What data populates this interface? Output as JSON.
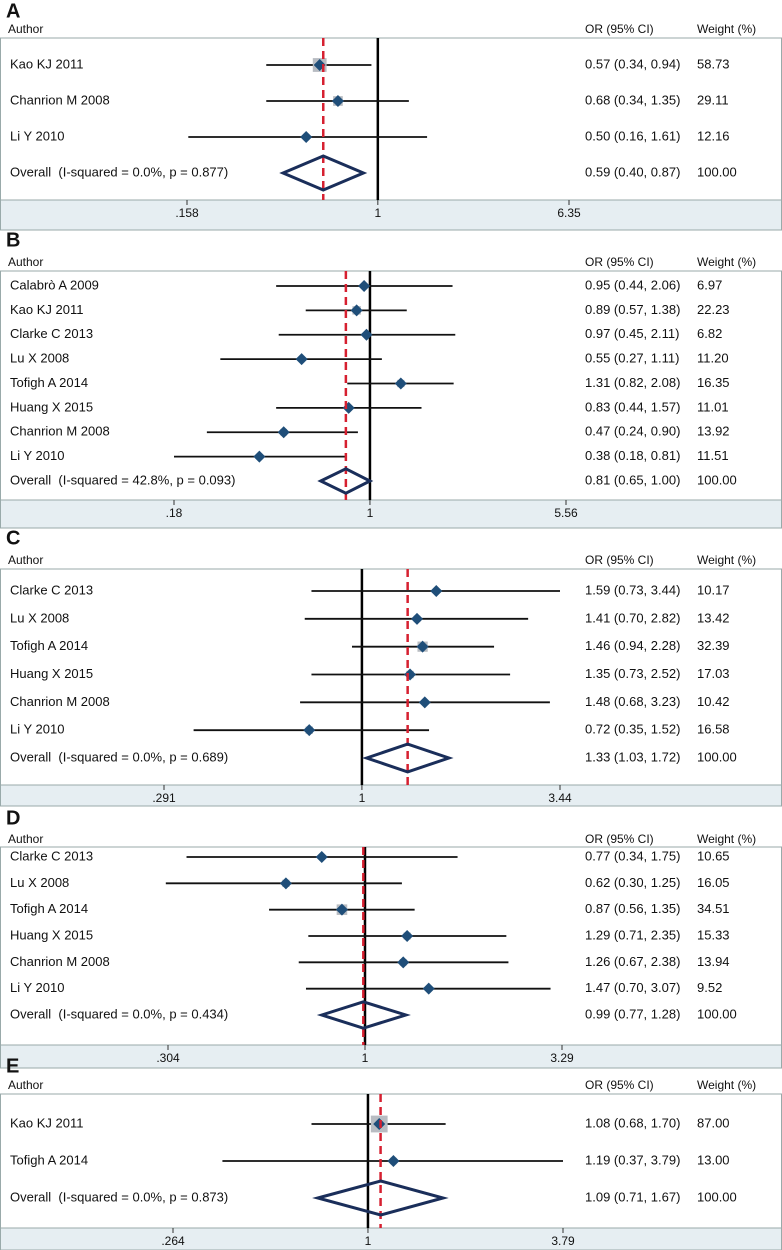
{
  "chart_data": [
    {
      "type": "forest",
      "title": "A",
      "y_label": "Author",
      "value_header": "OR (95% CI)",
      "weight_header": "Weight (%)",
      "categories": [
        "Kao KJ 2011",
        "Chanrion M 2008",
        "Li Y 2010"
      ],
      "values": [
        0.57,
        0.68,
        0.5
      ],
      "lower": [
        0.34,
        0.34,
        0.16
      ],
      "upper": [
        0.94,
        1.35,
        1.61
      ],
      "value_labels": [
        "0.57 (0.34, 0.94)",
        "0.68 (0.34, 1.35)",
        "0.50 (0.16, 1.61)"
      ],
      "weights": [
        58.73,
        29.11,
        12.16
      ],
      "weight_labels": [
        "58.73",
        "29.11",
        "12.16"
      ],
      "overall": {
        "label": "Overall  (I-squared = 0.0%, p = 0.877)",
        "value": 0.59,
        "lower": 0.4,
        "upper": 0.87,
        "value_label": "0.59 (0.40, 0.87)",
        "weight": 100,
        "weight_label": "100.00"
      },
      "log_x": true,
      "xlim": [
        0.158,
        6.35
      ],
      "xticks": [
        {
          "value": 0.158,
          "label": ".158"
        },
        1,
        6.35
      ]
    },
    {
      "type": "forest",
      "title": "B",
      "y_label": "Author",
      "value_header": "OR (95% CI)",
      "weight_header": "Weight (%)",
      "categories": [
        "Calabrò A 2009",
        "Kao KJ 2011",
        "Clarke C 2013",
        "Lu X 2008",
        "Tofigh A 2014",
        "Huang X 2015",
        "Chanrion M 2008",
        "Li Y 2010"
      ],
      "values": [
        0.95,
        0.89,
        0.97,
        0.55,
        1.31,
        0.83,
        0.47,
        0.38
      ],
      "lower": [
        0.44,
        0.57,
        0.45,
        0.27,
        0.82,
        0.44,
        0.24,
        0.18
      ],
      "upper": [
        2.06,
        1.38,
        2.11,
        1.11,
        2.08,
        1.57,
        0.9,
        0.81
      ],
      "value_labels": [
        "0.95 (0.44, 2.06)",
        "0.89 (0.57, 1.38)",
        "0.97 (0.45, 2.11)",
        "0.55 (0.27, 1.11)",
        "1.31 (0.82, 2.08)",
        "0.83 (0.44, 1.57)",
        "0.47 (0.24, 0.90)",
        "0.38 (0.18, 0.81)"
      ],
      "weights": [
        6.97,
        22.23,
        6.82,
        11.2,
        16.35,
        11.01,
        13.92,
        11.51
      ],
      "weight_labels": [
        "6.97",
        "22.23",
        "6.82",
        "11.20",
        "16.35",
        "11.01",
        "13.92",
        "11.51"
      ],
      "overall": {
        "label": "Overall  (I-squared = 42.8%, p = 0.093)",
        "value": 0.81,
        "lower": 0.65,
        "upper": 1.0,
        "value_label": "0.81 (0.65, 1.00)",
        "weight": 100,
        "weight_label": "100.00"
      },
      "log_x": true,
      "xlim": [
        0.18,
        5.56
      ],
      "xticks": [
        {
          "value": 0.18,
          "label": ".18"
        },
        1,
        5.56
      ]
    },
    {
      "type": "forest",
      "title": "C",
      "y_label": "Author",
      "value_header": "OR (95% CI)",
      "weight_header": "Weight (%)",
      "categories": [
        "Clarke C 2013",
        "Lu X 2008",
        "Tofigh A 2014",
        "Huang X 2015",
        "Chanrion M 2008",
        "Li Y 2010"
      ],
      "values": [
        1.59,
        1.41,
        1.46,
        1.35,
        1.48,
        0.72
      ],
      "lower": [
        0.73,
        0.7,
        0.94,
        0.73,
        0.68,
        0.35
      ],
      "upper": [
        3.44,
        2.82,
        2.28,
        2.52,
        3.23,
        1.52
      ],
      "value_labels": [
        "1.59 (0.73, 3.44)",
        "1.41 (0.70, 2.82)",
        "1.46 (0.94, 2.28)",
        "1.35 (0.73, 2.52)",
        "1.48 (0.68, 3.23)",
        "0.72 (0.35, 1.52)"
      ],
      "weights": [
        10.17,
        13.42,
        32.39,
        17.03,
        10.42,
        16.58
      ],
      "weight_labels": [
        "10.17",
        "13.42",
        "32.39",
        "17.03",
        "10.42",
        "16.58"
      ],
      "overall": {
        "label": "Overall  (I-squared = 0.0%, p = 0.689)",
        "value": 1.33,
        "lower": 1.03,
        "upper": 1.72,
        "value_label": "1.33 (1.03, 1.72)",
        "weight": 100,
        "weight_label": "100.00"
      },
      "log_x": true,
      "xlim": [
        0.291,
        3.44
      ],
      "xticks": [
        {
          "value": 0.291,
          "label": ".291"
        },
        1,
        3.44
      ]
    },
    {
      "type": "forest",
      "title": "D",
      "y_label": "Author",
      "value_header": "OR (95% CI)",
      "weight_header": "Weight (%)",
      "categories": [
        "Clarke C 2013",
        "Lu X 2008",
        "Tofigh A 2014",
        "Huang X 2015",
        "Chanrion M 2008",
        "Li Y 2010"
      ],
      "values": [
        0.77,
        0.62,
        0.87,
        1.29,
        1.26,
        1.47
      ],
      "lower": [
        0.34,
        0.3,
        0.56,
        0.71,
        0.67,
        0.7
      ],
      "upper": [
        1.75,
        1.25,
        1.35,
        2.35,
        2.38,
        3.07
      ],
      "value_labels": [
        "0.77 (0.34, 1.75)",
        "0.62 (0.30, 1.25)",
        "0.87 (0.56, 1.35)",
        "1.29 (0.71, 2.35)",
        "1.26 (0.67, 2.38)",
        "1.47 (0.70, 3.07)"
      ],
      "weights": [
        10.65,
        16.05,
        34.51,
        15.33,
        13.94,
        9.52
      ],
      "weight_labels": [
        "10.65",
        "16.05",
        "34.51",
        "15.33",
        "13.94",
        "9.52"
      ],
      "overall": {
        "label": "Overall  (I-squared = 0.0%, p = 0.434)",
        "value": 0.99,
        "lower": 0.77,
        "upper": 1.28,
        "value_label": "0.99 (0.77, 1.28)",
        "weight": 100,
        "weight_label": "100.00"
      },
      "log_x": true,
      "xlim": [
        0.304,
        3.29
      ],
      "xticks": [
        {
          "value": 0.304,
          "label": ".304"
        },
        1,
        3.29
      ]
    },
    {
      "type": "forest",
      "title": "E",
      "y_label": "Author",
      "value_header": "OR (95% CI)",
      "weight_header": "Weight (%)",
      "categories": [
        "Kao KJ 2011",
        "Tofigh A 2014"
      ],
      "values": [
        1.08,
        1.19
      ],
      "lower": [
        0.68,
        0.37
      ],
      "upper": [
        1.7,
        3.79
      ],
      "value_labels": [
        "1.08 (0.68, 1.70)",
        "1.19 (0.37, 3.79)"
      ],
      "weights": [
        87.0,
        13.0
      ],
      "weight_labels": [
        "87.00",
        "13.00"
      ],
      "overall": {
        "label": "Overall  (I-squared = 0.0%, p = 0.873)",
        "value": 1.09,
        "lower": 0.71,
        "upper": 1.67,
        "value_label": "1.09 (0.71, 1.67)",
        "weight": 100,
        "weight_label": "100.00"
      },
      "log_x": true,
      "xlim": [
        0.264,
        3.79
      ],
      "xticks": [
        {
          "value": 0.264,
          "label": ".264"
        },
        1,
        3.79
      ]
    }
  ]
}
